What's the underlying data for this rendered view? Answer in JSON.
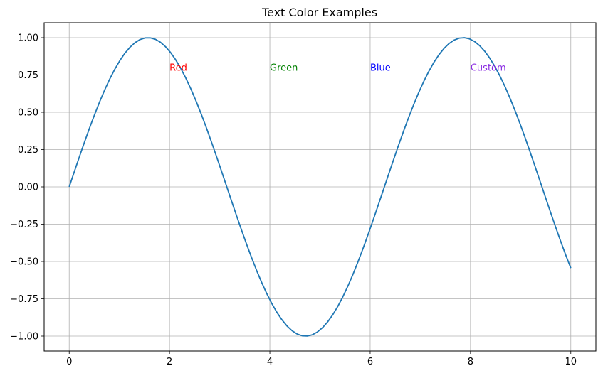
{
  "chart_data": {
    "type": "line",
    "title": "Text Color Examples",
    "xlabel": "",
    "ylabel": "",
    "xlim": [
      -0.5,
      10.5
    ],
    "ylim": [
      -1.1,
      1.1
    ],
    "x_ticks": [
      0,
      2,
      4,
      6,
      8,
      10
    ],
    "y_ticks": [
      -1.0,
      -0.75,
      -0.5,
      -0.25,
      0.0,
      0.25,
      0.5,
      0.75,
      1.0
    ],
    "x_tick_labels": [
      "0",
      "2",
      "4",
      "6",
      "8",
      "10"
    ],
    "y_tick_labels": [
      "−1.00",
      "−0.75",
      "−0.50",
      "−0.25",
      "0.00",
      "0.25",
      "0.50",
      "0.75",
      "1.00"
    ],
    "grid": true,
    "series": [
      {
        "color": "#1f77b4",
        "function": "sin(x)",
        "x_range": [
          0,
          10
        ],
        "sample_count": 100
      }
    ],
    "annotations": [
      {
        "text": "Red",
        "x": 2,
        "y": 0.8,
        "color": "#ff0000"
      },
      {
        "text": "Green",
        "x": 4,
        "y": 0.8,
        "color": "#008000"
      },
      {
        "text": "Blue",
        "x": 6,
        "y": 0.8,
        "color": "#0000ff"
      },
      {
        "text": "Custom",
        "x": 8,
        "y": 0.8,
        "color": "#8a2be2"
      }
    ]
  }
}
